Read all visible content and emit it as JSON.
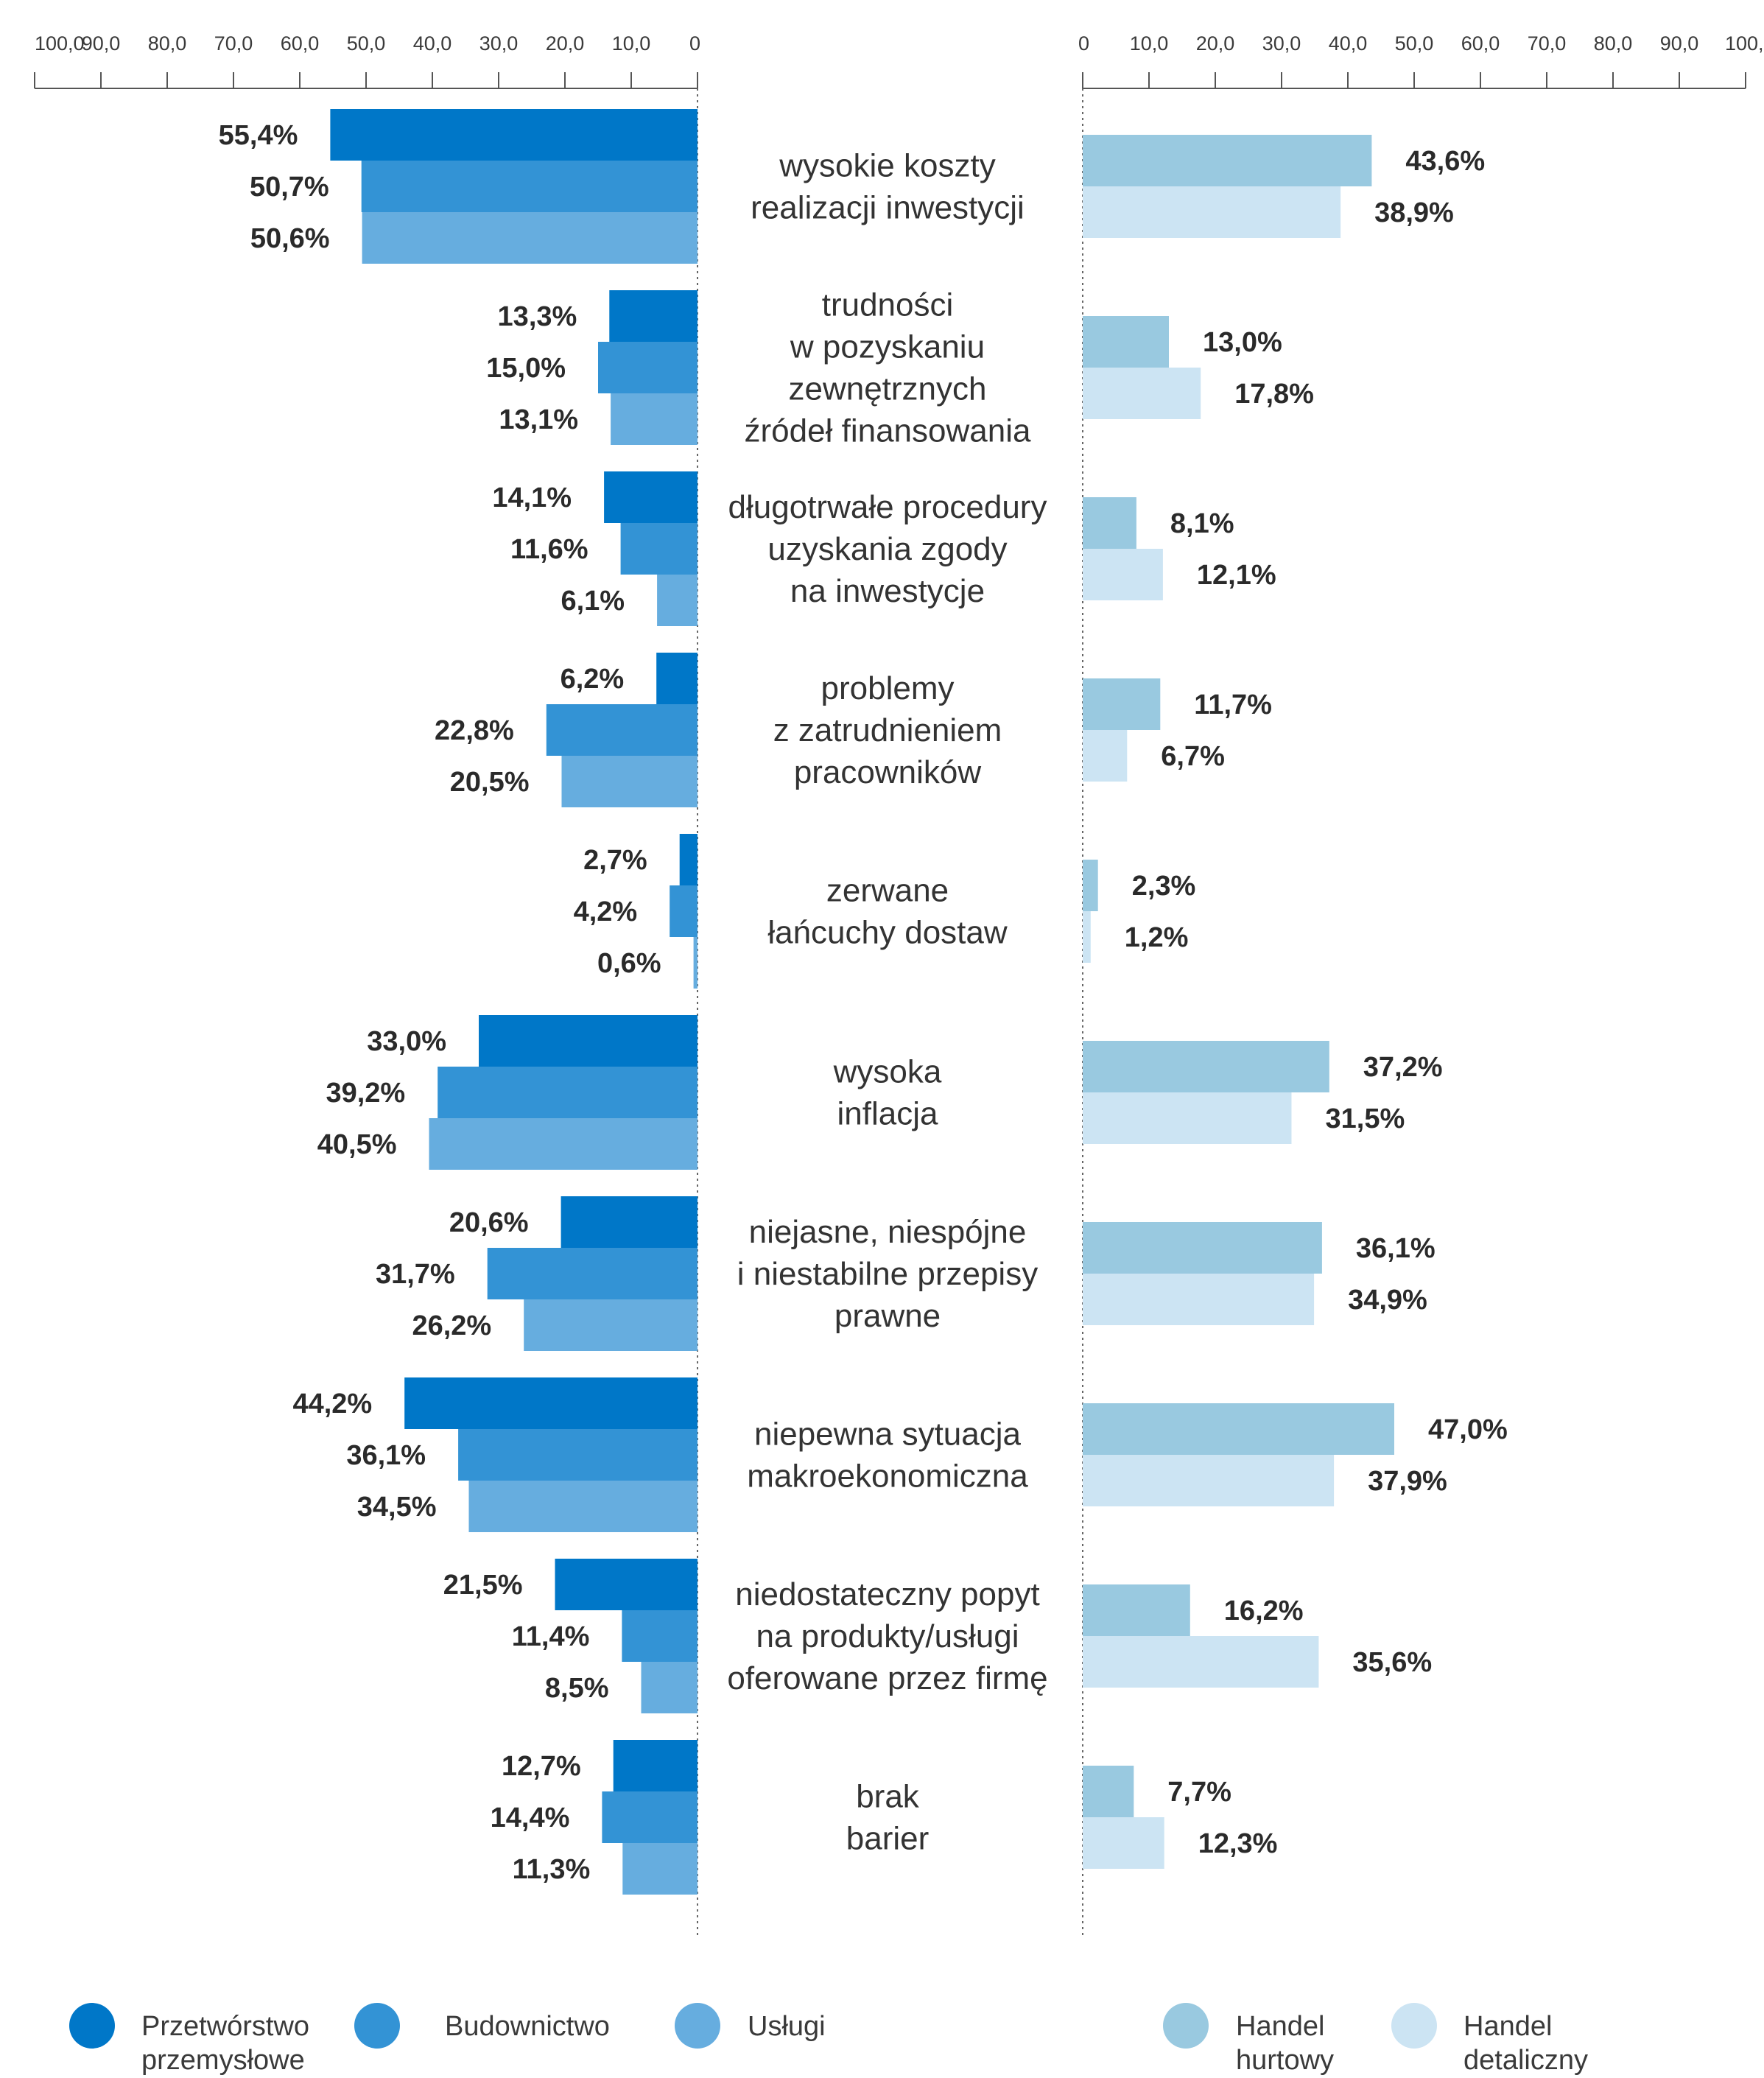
{
  "chart_data": {
    "type": "bar",
    "orientation": "horizontal",
    "layout": "butterfly",
    "categories": [
      [
        "wysokie koszty",
        "realizacji inwestycji"
      ],
      [
        "trudności",
        "w pozyskaniu",
        "zewnętrznych",
        "źródeł finansowania"
      ],
      [
        "długotrwałe procedury",
        "uzyskania zgody",
        "na inwestycje"
      ],
      [
        "problemy",
        "z zatrudnieniem",
        "pracowników"
      ],
      [
        "zerwane",
        "łańcuchy dostaw"
      ],
      [
        "wysoka",
        "inflacja"
      ],
      [
        "niejasne, niespójne",
        "i niestabilne przepisy",
        "prawne"
      ],
      [
        "niepewna sytuacja",
        "makroekonomiczna"
      ],
      [
        "niedostateczny popyt",
        "na produkty/usługi",
        "oferowane przez firmę"
      ],
      [
        "brak",
        "barier"
      ]
    ],
    "left_series": [
      {
        "name": "Przetwórstwo przemysłowe",
        "legend_lines": [
          "Przetwórstwo",
          "przemysłowe"
        ],
        "color": "#0077c8",
        "values": [
          55.4,
          13.3,
          14.1,
          6.2,
          2.7,
          33.0,
          20.6,
          44.2,
          21.5,
          12.7
        ],
        "labels": [
          "55,4%",
          "13,3%",
          "14,1%",
          "6,2%",
          "2,7%",
          "33,0%",
          "20,6%",
          "44,2%",
          "21,5%",
          "12,7%"
        ]
      },
      {
        "name": "Budownictwo",
        "legend_lines": [
          "Budownictwo"
        ],
        "color": "#3393d5",
        "values": [
          50.7,
          15.0,
          11.6,
          22.8,
          4.2,
          39.2,
          31.7,
          36.1,
          11.4,
          14.4
        ],
        "labels": [
          "50,7%",
          "15,0%",
          "11,6%",
          "22,8%",
          "4,2%",
          "39,2%",
          "31,7%",
          "36,1%",
          "11,4%",
          "14,4%"
        ]
      },
      {
        "name": "Usługi",
        "legend_lines": [
          "Usługi"
        ],
        "color": "#66addf",
        "values": [
          50.6,
          13.1,
          6.1,
          20.5,
          0.6,
          40.5,
          26.2,
          34.5,
          8.5,
          11.3
        ],
        "labels": [
          "50,6%",
          "13,1%",
          "6,1%",
          "20,5%",
          "0,6%",
          "40,5%",
          "26,2%",
          "34,5%",
          "8,5%",
          "11,3%"
        ]
      }
    ],
    "right_series": [
      {
        "name": "Handel hurtowy",
        "legend_lines": [
          "Handel",
          "hurtowy"
        ],
        "color": "#99c9e0",
        "values": [
          43.6,
          13.0,
          8.1,
          11.7,
          2.3,
          37.2,
          36.1,
          47.0,
          16.2,
          7.7
        ],
        "labels": [
          "43,6%",
          "13,0%",
          "8,1%",
          "11,7%",
          "2,3%",
          "37,2%",
          "36,1%",
          "47,0%",
          "16,2%",
          "7,7%"
        ]
      },
      {
        "name": "Handel detaliczny",
        "legend_lines": [
          "Handel",
          "detaliczny"
        ],
        "color": "#cce4f3",
        "values": [
          38.9,
          17.8,
          12.1,
          6.7,
          1.2,
          31.5,
          34.9,
          37.9,
          35.6,
          12.3
        ],
        "labels": [
          "38,9%",
          "17,8%",
          "12,1%",
          "6,7%",
          "1,2%",
          "31,5%",
          "34,9%",
          "37,9%",
          "35,6%",
          "12,3%"
        ]
      }
    ],
    "axis_ticks": [
      "0",
      "10,0",
      "20,0",
      "30,0",
      "40,0",
      "50,0",
      "60,0",
      "70,0",
      "80,0",
      "90,0",
      "100,0"
    ],
    "xlim": [
      0,
      100
    ],
    "grid": false,
    "legend_position": "bottom"
  }
}
